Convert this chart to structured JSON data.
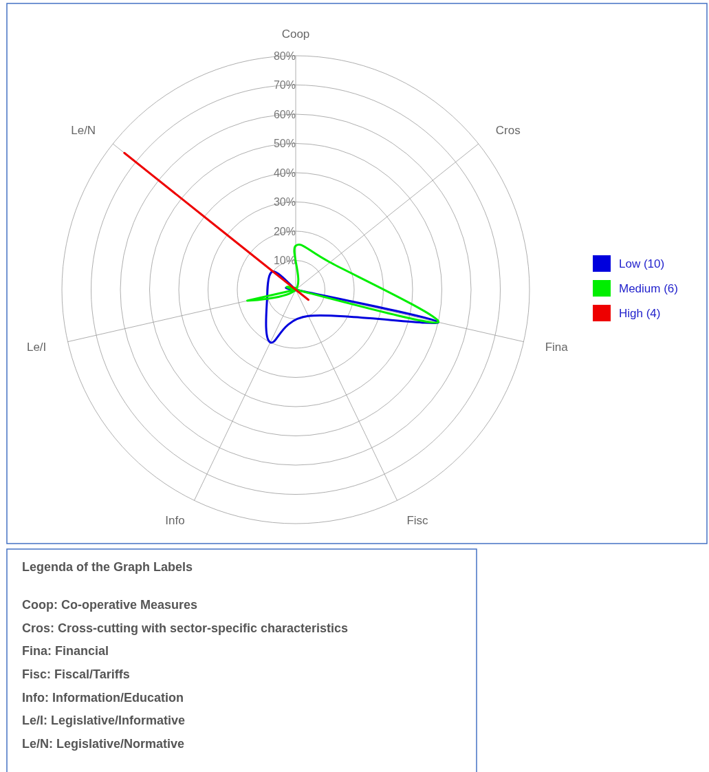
{
  "chart_data": {
    "type": "radar",
    "categories": [
      "Coop",
      "Cros",
      "Fina",
      "Fisc",
      "Info",
      "Le/I",
      "Le/N"
    ],
    "series": [
      {
        "name": "Low (10)",
        "color": "#0000dd",
        "values": [
          0,
          0,
          50,
          10,
          20,
          10,
          10
        ]
      },
      {
        "name": "Medium (6)",
        "color": "#00ee00",
        "values": [
          15,
          15,
          50,
          0,
          0,
          17,
          0
        ]
      },
      {
        "name": "High (4)",
        "color": "#ee0000",
        "values": [
          0,
          0,
          0,
          0,
          0,
          0,
          75
        ]
      }
    ],
    "ylim": [
      0,
      80
    ],
    "yticks": [
      {
        "value": 10,
        "label": "10%"
      },
      {
        "value": 20,
        "label": "20%"
      },
      {
        "value": 30,
        "label": "30%"
      },
      {
        "value": 40,
        "label": "40%"
      },
      {
        "value": 50,
        "label": "50%"
      },
      {
        "value": 60,
        "label": "60%"
      },
      {
        "value": 70,
        "label": "70%"
      },
      {
        "value": 80,
        "label": "80%"
      }
    ],
    "grid": true,
    "legend": "right",
    "annotations": [
      "Legenda of the Graph Labels",
      "Coop: Co-operative Measures",
      "Cros: Cross-cutting with sector-specific characteristics",
      "Fina: Financial",
      "Fisc: Fiscal/Tariffs",
      "Info: Information/Education",
      "Le/I: Legislative/Informative",
      "Le/N: Legislative/Normative"
    ]
  }
}
